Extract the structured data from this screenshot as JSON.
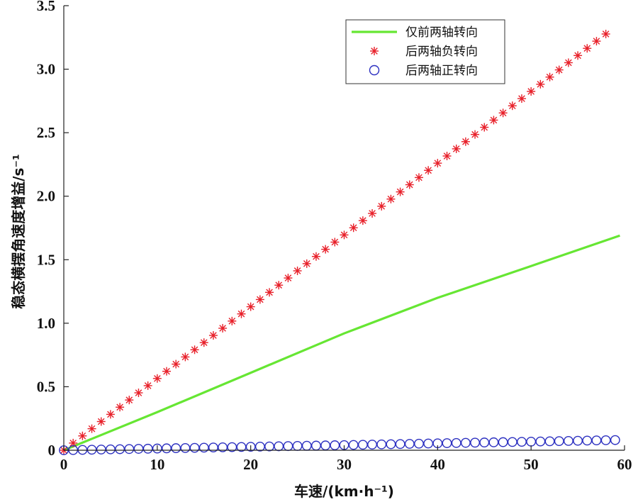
{
  "chart_data": {
    "type": "line",
    "xlabel": "车速/(km·h⁻¹)",
    "ylabel": "稳态横摆角速度增益/s⁻¹",
    "xlim": [
      0,
      60
    ],
    "ylim": [
      0,
      3.5
    ],
    "xticks": [
      "0",
      "10",
      "20",
      "30",
      "40",
      "50",
      "60"
    ],
    "yticks": [
      "0",
      "0.5",
      "1.0",
      "1.5",
      "2.0",
      "2.5",
      "3.0",
      "3.5"
    ],
    "grid": false,
    "legend": "top-right",
    "series": [
      {
        "name": "仅前两轴转向",
        "style": "line",
        "color": "#66e633",
        "x": [
          0,
          10,
          20,
          30,
          40,
          50,
          59.5
        ],
        "y": [
          0,
          0.3,
          0.61,
          0.92,
          1.2,
          1.45,
          1.69
        ]
      },
      {
        "name": "后两轴负转向",
        "style": "asterisk",
        "color": "#e8202a",
        "x_start": 0,
        "x_step": 1,
        "x_end": 58,
        "y_slope": 0.0565
      },
      {
        "name": "后两轴正转向",
        "style": "circle",
        "color": "#2b2fc0",
        "x_start": 0,
        "x_step": 1,
        "x_end": 59,
        "y_at_end": 0.08
      }
    ]
  }
}
